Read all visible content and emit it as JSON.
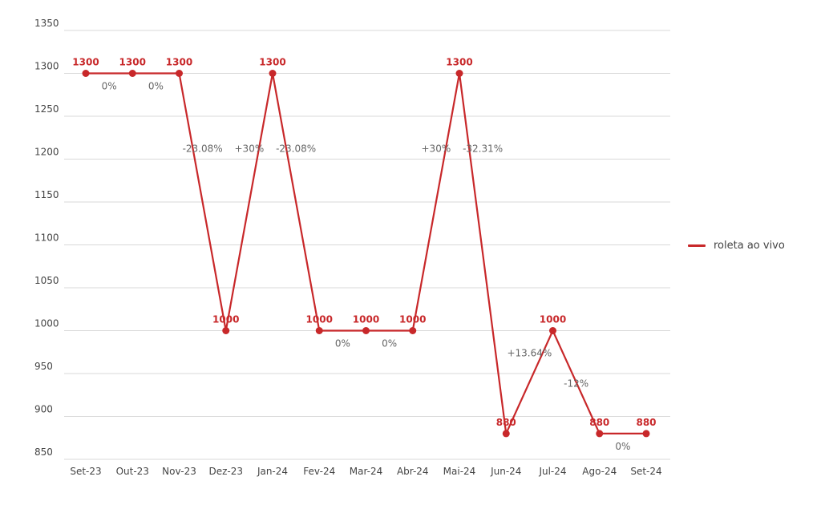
{
  "chart_data": {
    "type": "line",
    "categories": [
      "Set-23",
      "Out-23",
      "Nov-23",
      "Dez-23",
      "Jan-24",
      "Fev-24",
      "Mar-24",
      "Abr-24",
      "Mai-24",
      "Jun-24",
      "Jul-24",
      "Ago-24",
      "Set-24"
    ],
    "series": [
      {
        "name": "roleta ao vivo",
        "values": [
          1300,
          1300,
          1300,
          1000,
          1300,
          1000,
          1000,
          1000,
          1300,
          880,
          1000,
          880,
          880
        ],
        "data_labels": [
          "1300",
          "1300",
          "1300",
          "1000",
          "1300",
          "1000",
          "1000",
          "1000",
          "1300",
          "880",
          "1000",
          "880",
          "880"
        ]
      }
    ],
    "change_labels": [
      "0%",
      "0%",
      "-23.08%",
      "+30%",
      "-23.08%",
      "0%",
      "0%",
      "+30%",
      "-32.31%",
      "+13.64%",
      "-12%",
      "0%"
    ],
    "y_ticks": [
      "850",
      "900",
      "950",
      "1000",
      "1050",
      "1100",
      "1150",
      "1200",
      "1250",
      "1300",
      "1350"
    ],
    "ylim": [
      850,
      1350
    ],
    "grid": true,
    "legend_position": "right",
    "colors": {
      "series": "#c8282a",
      "grid": "#d9d9d9",
      "tick_text": "#444444",
      "change_text": "#666666"
    }
  }
}
